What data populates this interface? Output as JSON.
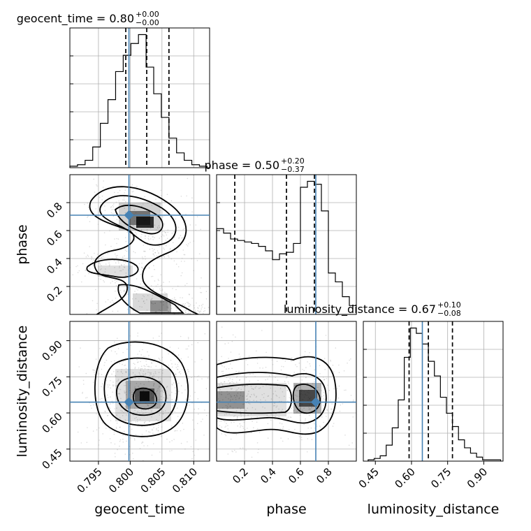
{
  "chart_data": [
    {
      "type": "histogram",
      "parameter": "geocent_time",
      "title": "geocent_time = 0.80",
      "title_sup": "+0.00",
      "title_sub": "−0.00",
      "xlim": [
        0.7905,
        0.8125
      ],
      "xticks": [
        "0.795",
        "0.800",
        "0.805",
        "0.810"
      ],
      "xlabel": "geocent_time",
      "bin_edges": [
        0.7905,
        0.7917,
        0.7929,
        0.7941,
        0.7953,
        0.7965,
        0.7977,
        0.7989,
        0.8001,
        0.8013,
        0.8025,
        0.8037,
        0.8049,
        0.8061,
        0.8073,
        0.8085,
        0.8097,
        0.8109,
        0.8121
      ],
      "counts": [
        1,
        2,
        5,
        14,
        30,
        46,
        65,
        76,
        84,
        90,
        68,
        50,
        34,
        20,
        10,
        5,
        2,
        1
      ],
      "quantiles": [
        0.7993,
        0.8026,
        0.8061
      ],
      "truth": 0.7998
    },
    {
      "type": "histogram",
      "parameter": "phase",
      "title": "phase = 0.50",
      "title_sup": "+0.20",
      "title_sub": "−0.37",
      "xlim": [
        0.0,
        1.0
      ],
      "xticks": [
        "0.2",
        "0.4",
        "0.6",
        "0.8"
      ],
      "xlabel": "phase",
      "bin_edges": [
        0.0,
        0.05,
        0.1,
        0.15,
        0.2,
        0.25,
        0.3,
        0.35,
        0.4,
        0.45,
        0.5,
        0.55,
        0.6,
        0.65,
        0.7,
        0.75,
        0.8,
        0.85,
        0.9,
        0.95,
        1.0
      ],
      "counts": [
        58,
        55,
        51,
        50,
        49,
        48,
        46,
        43,
        37,
        41,
        42,
        48,
        86,
        90,
        88,
        70,
        28,
        22,
        12,
        6
      ],
      "quantiles": [
        0.13,
        0.5,
        0.7
      ],
      "truth": 0.71
    },
    {
      "type": "histogram",
      "parameter": "luminosity_distance",
      "title": "luminosity_distance = 0.67",
      "title_sup": "+0.10",
      "title_sub": "−0.08",
      "xlim": [
        0.4,
        0.98
      ],
      "xticks": [
        "0.45",
        "0.60",
        "0.75",
        "0.90"
      ],
      "xlabel": "luminosity_distance",
      "bin_edges": [
        0.42,
        0.445,
        0.47,
        0.495,
        0.52,
        0.545,
        0.57,
        0.595,
        0.62,
        0.645,
        0.67,
        0.695,
        0.72,
        0.745,
        0.77,
        0.795,
        0.82,
        0.845,
        0.87,
        0.895,
        0.92,
        0.945,
        0.97
      ],
      "counts": [
        1,
        2,
        4,
        12,
        25,
        46,
        78,
        100,
        96,
        88,
        75,
        64,
        48,
        36,
        26,
        16,
        10,
        6,
        3,
        1,
        1,
        1
      ],
      "quantiles": [
        0.59,
        0.67,
        0.77
      ],
      "truth": 0.645
    },
    {
      "type": "2d-density",
      "x": "geocent_time",
      "y": "phase",
      "xlim": [
        0.7905,
        0.8125
      ],
      "ylim": [
        0.0,
        1.0
      ],
      "yticks": [
        "0.2",
        "0.4",
        "0.6",
        "0.8"
      ],
      "ylabel": "phase",
      "truth": [
        0.7998,
        0.71
      ]
    },
    {
      "type": "2d-density",
      "x": "geocent_time",
      "y": "luminosity_distance",
      "xlim": [
        0.7905,
        0.8125
      ],
      "ylim": [
        0.4,
        0.98
      ],
      "yticks": [
        "0.45",
        "0.60",
        "0.75",
        "0.90"
      ],
      "ylabel": "luminosity_distance",
      "truth": [
        0.7998,
        0.645
      ]
    },
    {
      "type": "2d-density",
      "x": "phase",
      "y": "luminosity_distance",
      "xlim": [
        0.0,
        1.0
      ],
      "ylim": [
        0.4,
        0.98
      ],
      "truth": [
        0.71,
        0.645
      ]
    }
  ],
  "colors": {
    "truth": "#4682b4",
    "lines": "#000000",
    "grid": "#b0b0b0",
    "scatter": "#9a9a9a"
  }
}
